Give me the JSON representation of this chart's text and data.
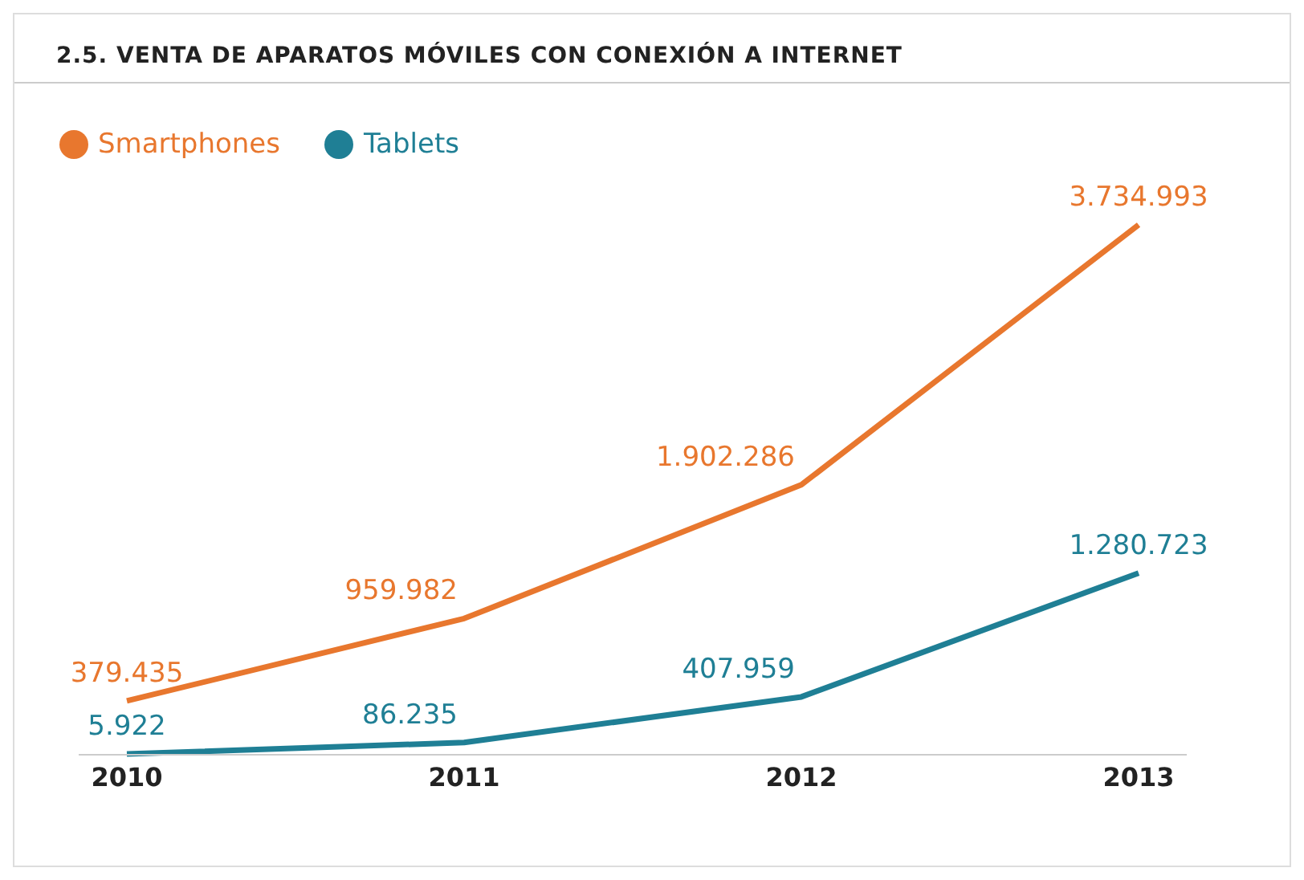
{
  "chart_data": {
    "type": "line",
    "title": "2.5. VENTA DE APARATOS MÓVILES CON CONEXIÓN A INTERNET",
    "categories": [
      "2010",
      "2011",
      "2012",
      "2013"
    ],
    "legend": "top left",
    "marker": "none",
    "line_style": "solid",
    "tick_labels": "x",
    "series": [
      {
        "name": "Smartphones",
        "color": "#e8772e",
        "values": [
          379435,
          959982,
          1902286,
          3734993
        ],
        "value_labels": [
          "379.435",
          "959.982",
          "1.902.286",
          "3.734.993"
        ]
      },
      {
        "name": "Tablets",
        "color": "#1f7f95",
        "values": [
          5922,
          86235,
          407959,
          1280723
        ],
        "value_labels": [
          "5.922",
          "86.235",
          "407.959",
          "1.280.723"
        ]
      }
    ]
  }
}
